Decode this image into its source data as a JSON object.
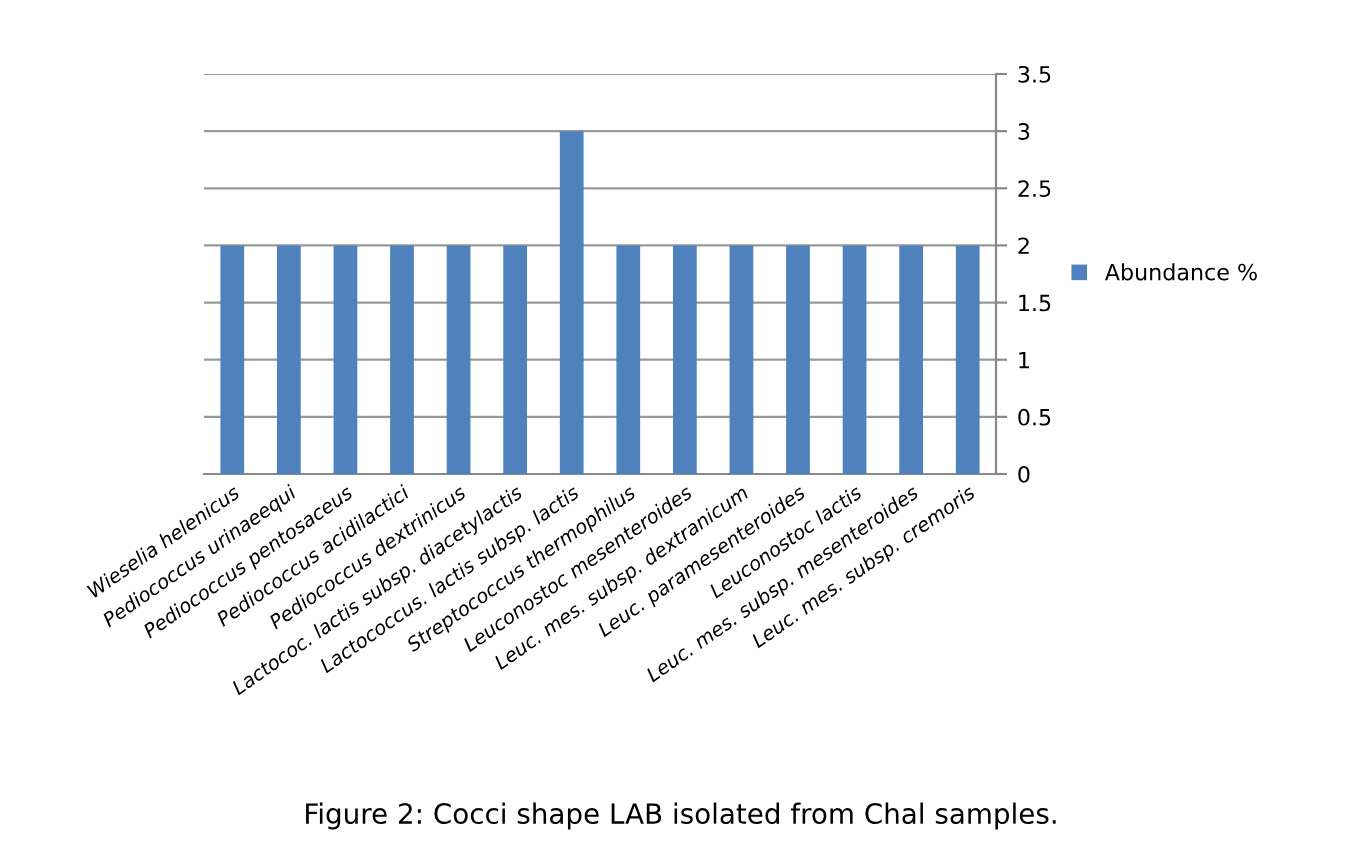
{
  "chart_data": {
    "type": "bar",
    "categories": [
      "Wieselia helenicus",
      "Pediococcus urinaeequi",
      "Pediococcus pentosaceus",
      "Pediococcus acidilactici",
      "Pediococcus dextrinicus",
      "Lactococ. lactis subsp. diacetylactis",
      "Lactococcus. lactis subsp. lactis",
      "Streptococcus thermophilus",
      "Leuconostoc mesenteroides",
      "Leuc. mes. subsp. dextranicum",
      "Leuc. paramesenteroides",
      "Leuconostoc lactis",
      "Leuc. mes. subsp. mesenteroides",
      "Leuc. mes. subsp. cremoris"
    ],
    "series": [
      {
        "name": "Abundance %",
        "color": "#4f81bd",
        "values": [
          2,
          2,
          2,
          2,
          2,
          2,
          3,
          2,
          2,
          2,
          2,
          2,
          2,
          2
        ]
      }
    ],
    "ylim": [
      0,
      3.5
    ],
    "yticks": [
      0,
      0.5,
      1,
      1.5,
      2,
      2.5,
      3,
      3.5
    ],
    "grid": "y",
    "legend": "right",
    "annotations": [
      "Figure 2: Cocci shape LAB isolated from Chal samples."
    ]
  }
}
